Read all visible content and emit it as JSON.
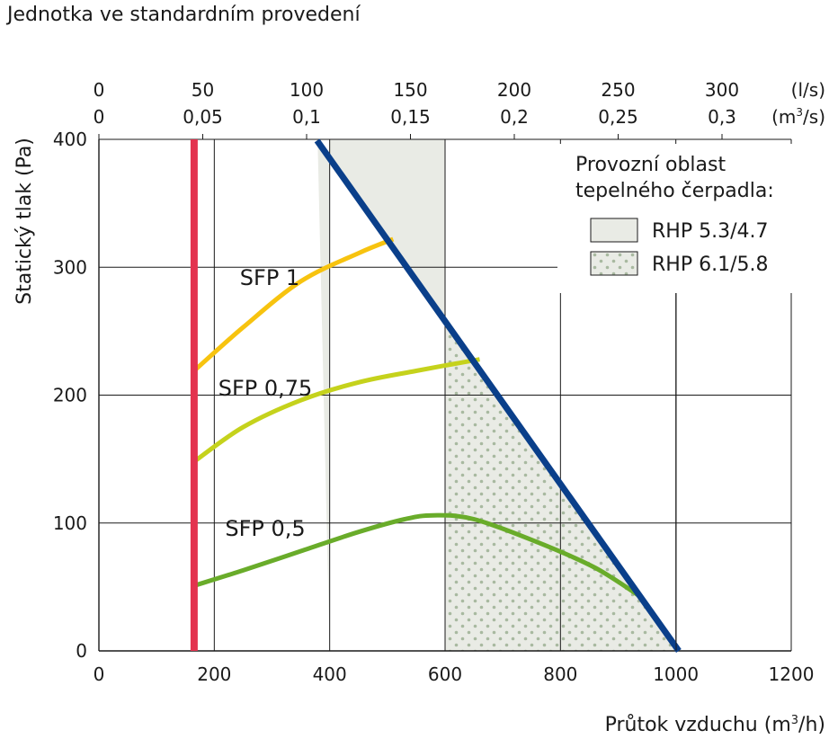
{
  "chart_data": {
    "type": "line",
    "title": "Jednotka ve standardním provedení",
    "xlabel": "Průtok vzduchu",
    "xunit_prefix": "(m",
    "xunit_sup": "3",
    "xunit_suffix": "/h)",
    "ylabel": "Statický tlak (Pa)",
    "xlim": [
      0,
      1200
    ],
    "ylim": [
      0,
      400
    ],
    "x_ticks": [
      "0",
      "200",
      "400",
      "600",
      "800",
      "1000",
      "1200"
    ],
    "y_ticks": [
      "0",
      "100",
      "200",
      "300",
      "400"
    ],
    "top_axis_ls": {
      "unit": "(l/s)",
      "ticks": [
        "0",
        "50",
        "100",
        "150",
        "200",
        "250",
        "300"
      ],
      "values": [
        0,
        50,
        100,
        150,
        200,
        250,
        300
      ]
    },
    "top_axis_m3s": {
      "unit_prefix": "(m",
      "unit_sup": "3",
      "unit_suffix": "/s)",
      "ticks": [
        "0",
        "0,05",
        "0,1",
        "0,15",
        "0,2",
        "0,25",
        "0,3"
      ],
      "values": [
        0,
        0.05,
        0.1,
        0.15,
        0.2,
        0.25,
        0.3
      ]
    },
    "grid": true,
    "legend": {
      "position": "top-right",
      "title_line1": "Provozní oblast",
      "title_line2": "tepelného čerpadla:",
      "items": [
        {
          "name": "RHP 5.3/4.7",
          "fill": "#e9ebe5",
          "pattern": "solid"
        },
        {
          "name": "RHP 6.1/5.8",
          "fill": "#e9ebe5",
          "pattern": "dotted",
          "dot_color": "#a8b9a0"
        }
      ]
    },
    "regions": [
      {
        "name": "RHP 5.3/4.7",
        "x": [
          400,
          400,
          600,
          600,
          1000,
          379
        ],
        "y": [
          0,
          400,
          400,
          262,
          0,
          400
        ]
      },
      {
        "name": "RHP 6.1/5.8",
        "x": [
          600,
          600,
          1000
        ],
        "y": [
          0,
          262,
          0
        ]
      }
    ],
    "series": [
      {
        "label": "SFP 1",
        "color": "#f7c30f",
        "x": [
          165,
          250,
          350,
          450,
          510
        ],
        "y": [
          219,
          253,
          289,
          311,
          322
        ]
      },
      {
        "label": "SFP 0,75",
        "color": "#c5d21c",
        "x": [
          165,
          250,
          350,
          450,
          550,
          660
        ],
        "y": [
          148,
          175,
          196,
          210,
          219,
          228
        ]
      },
      {
        "label": "SFP 0,5",
        "color": "#69ac2a",
        "x": [
          165,
          250,
          350,
          450,
          530,
          580,
          650,
          760,
          860,
          940
        ],
        "y": [
          51,
          63,
          78,
          93,
          103,
          106,
          103,
          85,
          65,
          42
        ]
      },
      {
        "color": "#e3334f",
        "x": [
          165,
          165
        ],
        "y": [
          0,
          400
        ]
      },
      {
        "color": "#0a3f8a",
        "x": [
          378,
          1005
        ],
        "y": [
          399,
          0
        ]
      }
    ]
  }
}
